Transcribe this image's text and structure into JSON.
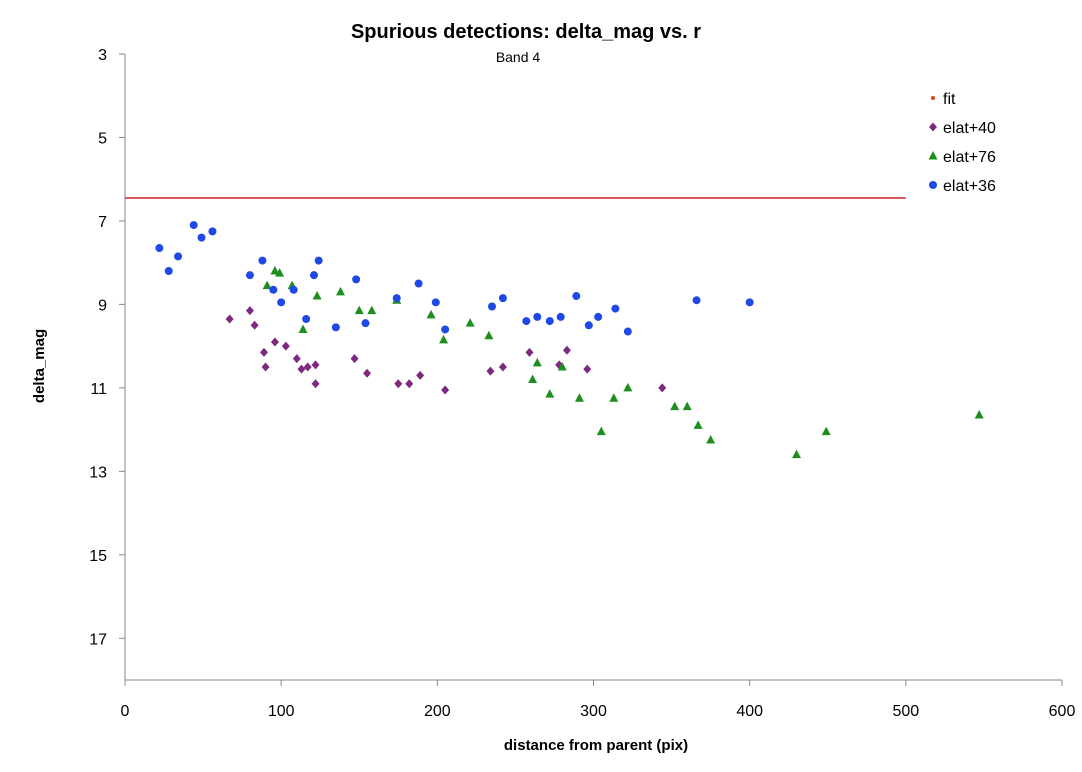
{
  "chart_data": {
    "type": "scatter",
    "title": "Spurious detections: delta_mag vs. r",
    "subtitle": "Band 4",
    "xlabel": "distance from parent (pix)",
    "ylabel": "delta_mag",
    "xlim": [
      0,
      600
    ],
    "ylim": [
      3,
      18
    ],
    "y_reversed": true,
    "xticks": [
      0,
      100,
      200,
      300,
      400,
      500,
      600
    ],
    "yticks": [
      3,
      5,
      7,
      9,
      11,
      13,
      15,
      17
    ],
    "grid": false,
    "legend_position": "top-right",
    "fit_line": {
      "y": 6.45,
      "x_range": [
        0,
        500
      ],
      "color": "#cc2222"
    },
    "series": [
      {
        "name": "fit",
        "marker": "dot",
        "color": "#e0401c",
        "points": []
      },
      {
        "name": "elat+40",
        "marker": "diamond",
        "color": "#7b2a7f",
        "points": [
          [
            67,
            9.35
          ],
          [
            80,
            9.15
          ],
          [
            83,
            9.5
          ],
          [
            89,
            10.15
          ],
          [
            90,
            10.5
          ],
          [
            96,
            9.9
          ],
          [
            103,
            10.0
          ],
          [
            110,
            10.3
          ],
          [
            113,
            10.55
          ],
          [
            117,
            10.5
          ],
          [
            122,
            10.45
          ],
          [
            122,
            10.9
          ],
          [
            147,
            10.3
          ],
          [
            155,
            10.65
          ],
          [
            175,
            10.9
          ],
          [
            182,
            10.9
          ],
          [
            189,
            10.7
          ],
          [
            205,
            11.05
          ],
          [
            234,
            10.6
          ],
          [
            242,
            10.5
          ],
          [
            259,
            10.15
          ],
          [
            278,
            10.45
          ],
          [
            283,
            10.1
          ],
          [
            296,
            10.55
          ],
          [
            344,
            11.0
          ]
        ]
      },
      {
        "name": "elat+76",
        "marker": "triangle",
        "color": "#1e8f1e",
        "points": [
          [
            91,
            8.55
          ],
          [
            96,
            8.2
          ],
          [
            99,
            8.25
          ],
          [
            107,
            8.55
          ],
          [
            114,
            9.6
          ],
          [
            123,
            8.8
          ],
          [
            138,
            8.7
          ],
          [
            150,
            9.15
          ],
          [
            158,
            9.15
          ],
          [
            174,
            8.9
          ],
          [
            196,
            9.25
          ],
          [
            204,
            9.85
          ],
          [
            221,
            9.45
          ],
          [
            233,
            9.75
          ],
          [
            261,
            10.8
          ],
          [
            264,
            10.4
          ],
          [
            272,
            11.15
          ],
          [
            280,
            10.5
          ],
          [
            291,
            11.25
          ],
          [
            305,
            12.05
          ],
          [
            313,
            11.25
          ],
          [
            322,
            11.0
          ],
          [
            352,
            11.45
          ],
          [
            360,
            11.45
          ],
          [
            367,
            11.9
          ],
          [
            375,
            12.25
          ],
          [
            430,
            12.6
          ],
          [
            449,
            12.05
          ],
          [
            547,
            11.65
          ]
        ]
      },
      {
        "name": "elat+36",
        "marker": "circle",
        "color": "#1f49e6",
        "points": [
          [
            22,
            7.65
          ],
          [
            28,
            8.2
          ],
          [
            34,
            7.85
          ],
          [
            44,
            7.1
          ],
          [
            49,
            7.4
          ],
          [
            56,
            7.25
          ],
          [
            80,
            8.3
          ],
          [
            88,
            7.95
          ],
          [
            95,
            8.65
          ],
          [
            100,
            8.95
          ],
          [
            108,
            8.65
          ],
          [
            116,
            9.35
          ],
          [
            121,
            8.3
          ],
          [
            124,
            7.95
          ],
          [
            135,
            9.55
          ],
          [
            148,
            8.4
          ],
          [
            154,
            9.45
          ],
          [
            174,
            8.85
          ],
          [
            188,
            8.5
          ],
          [
            199,
            8.95
          ],
          [
            205,
            9.6
          ],
          [
            235,
            9.05
          ],
          [
            242,
            8.85
          ],
          [
            257,
            9.4
          ],
          [
            264,
            9.3
          ],
          [
            272,
            9.4
          ],
          [
            279,
            9.3
          ],
          [
            289,
            8.8
          ],
          [
            297,
            9.5
          ],
          [
            303,
            9.3
          ],
          [
            314,
            9.1
          ],
          [
            322,
            9.65
          ],
          [
            366,
            8.9
          ],
          [
            400,
            8.95
          ]
        ]
      }
    ]
  }
}
